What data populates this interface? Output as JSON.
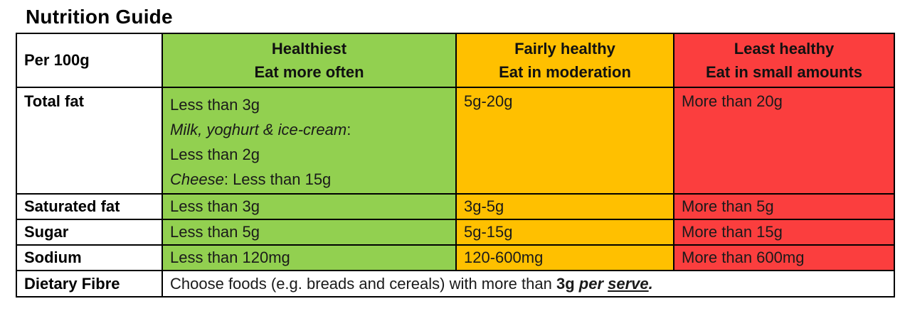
{
  "title": "Nutrition Guide",
  "colors": {
    "green": "#92D050",
    "orange": "#FFC000",
    "red": "#FB3E3E",
    "border": "#000000",
    "text": "#1A1A1A"
  },
  "table": {
    "corner_label": "Per 100g",
    "headers": [
      {
        "line1": "Healthiest",
        "line2": "Eat more often"
      },
      {
        "line1": "Fairly healthy",
        "line2": "Eat in moderation"
      },
      {
        "line1": "Least healthy",
        "line2": "Eat in small amounts"
      }
    ],
    "total_fat": {
      "label": "Total fat",
      "green_line1": "Less than 3g",
      "green_line2_italic": "Milk, yoghurt & ice-cream",
      "green_line2_rest": ":",
      "green_line3": "Less than 2g",
      "green_line4_italic": "Cheese",
      "green_line4_rest": ": Less than 15g",
      "orange": "5g-20g",
      "red": "More than 20g"
    },
    "rows": [
      {
        "label": "Saturated fat",
        "green": "Less than 3g",
        "orange": "3g-5g",
        "red": "More than 5g"
      },
      {
        "label": "Sugar",
        "green": "Less than 5g",
        "orange": "5g-15g",
        "red": "More than 15g"
      },
      {
        "label": "Sodium",
        "green": "Less than 120mg",
        "orange": "120-600mg",
        "red": "More than 600mg"
      }
    ],
    "dietary_fibre": {
      "label": "Dietary Fibre",
      "part1": "Choose foods (e.g. breads and cereals) with more than ",
      "part2_bold": "3g",
      "part3_bolditalic": " per ",
      "part4_underlined": "serve",
      "part5_bolditalic": "."
    }
  }
}
